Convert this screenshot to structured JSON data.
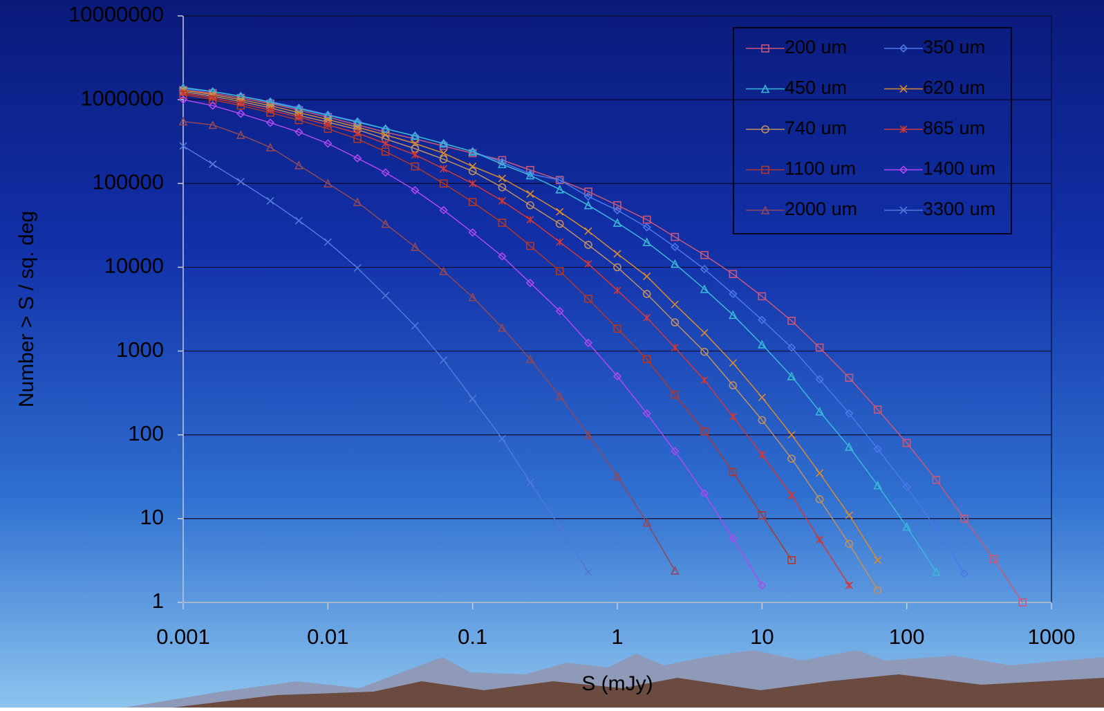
{
  "chart_data": {
    "type": "line",
    "x_label": "S (mJy)",
    "y_label": "Number > S / sq. deg",
    "x": [
      0.001,
      0.0016,
      0.0025,
      0.004,
      0.0063,
      0.01,
      0.016,
      0.025,
      0.04,
      0.063,
      0.1,
      0.16,
      0.25,
      0.4,
      0.63,
      1,
      1.6,
      2.5,
      4,
      6.3,
      10,
      16,
      25,
      40,
      63,
      100,
      160,
      250,
      400,
      630,
      1000
    ],
    "xscale": "log",
    "yscale": "log",
    "xlim": [
      0.001,
      1000
    ],
    "ylim": [
      1,
      10000000
    ],
    "xticks": [
      0.001,
      0.01,
      0.1,
      1,
      10,
      100,
      1000
    ],
    "yticks": [
      1,
      10,
      100,
      1000,
      10000,
      100000,
      1000000,
      10000000
    ],
    "grid": true,
    "legend": "top-right",
    "series": [
      {
        "name": "200 um",
        "color": "#c8587a",
        "marker": "square",
        "values": [
          1300000,
          1200000,
          1050000,
          900000,
          750000,
          620000,
          500000,
          410000,
          340000,
          280000,
          230000,
          190000,
          145000,
          110000,
          80000,
          55000,
          37000,
          23000,
          14000,
          8300,
          4500,
          2300,
          1100,
          480,
          200,
          80,
          29,
          10,
          3.3,
          1,
          null
        ]
      },
      {
        "name": "350 um",
        "color": "#4a78e8",
        "marker": "diamond",
        "values": [
          1350000,
          1250000,
          1100000,
          950000,
          800000,
          660000,
          550000,
          450000,
          370000,
          300000,
          240000,
          180000,
          130000,
          110000,
          70000,
          48000,
          30000,
          17500,
          9500,
          4800,
          2350,
          1100,
          460,
          180,
          68,
          24,
          7.5,
          2.2,
          null,
          null,
          null
        ]
      },
      {
        "name": "450 um",
        "color": "#38b8d8",
        "marker": "triangle",
        "values": [
          1400000,
          1250000,
          1100000,
          930000,
          780000,
          650000,
          540000,
          450000,
          370000,
          300000,
          240000,
          170000,
          125000,
          85000,
          55000,
          34000,
          20000,
          11000,
          5500,
          2700,
          1200,
          500,
          190,
          72,
          25,
          8,
          2.3,
          null,
          null,
          null,
          null
        ]
      },
      {
        "name": "620 um",
        "color": "#d88a30",
        "marker": "x",
        "values": [
          1300000,
          1150000,
          1000000,
          850000,
          700000,
          580000,
          470000,
          380000,
          300000,
          230000,
          160000,
          115000,
          75000,
          46000,
          27000,
          14500,
          7800,
          3600,
          1650,
          720,
          280,
          100,
          35,
          11,
          3.2,
          null,
          null,
          null,
          null,
          null,
          null
        ]
      },
      {
        "name": "740 um",
        "color": "#c09060",
        "marker": "circle",
        "values": [
          1250000,
          1100000,
          950000,
          800000,
          650000,
          540000,
          440000,
          340000,
          260000,
          195000,
          140000,
          90000,
          55000,
          33000,
          18500,
          10000,
          4800,
          2200,
          980,
          390,
          150,
          52,
          17,
          5,
          1.4,
          null,
          null,
          null,
          null,
          null,
          null
        ]
      },
      {
        "name": "865 um",
        "color": "#d03838",
        "marker": "star",
        "values": [
          1200000,
          1050000,
          900000,
          750000,
          620000,
          500000,
          400000,
          300000,
          220000,
          150000,
          100000,
          62000,
          37000,
          20000,
          11000,
          5300,
          2500,
          1100,
          450,
          165,
          58,
          19,
          5.6,
          1.6,
          null,
          null,
          null,
          null,
          null,
          null,
          null
        ]
      },
      {
        "name": "1100 um",
        "color": "#b03828",
        "marker": "square",
        "values": [
          1150000,
          1000000,
          850000,
          700000,
          570000,
          450000,
          340000,
          240000,
          160000,
          100000,
          60000,
          34000,
          18000,
          9000,
          4200,
          1850,
          800,
          300,
          110,
          36,
          11,
          3.2,
          null,
          null,
          null,
          null,
          null,
          null,
          null,
          null,
          null
        ]
      },
      {
        "name": "1400 um",
        "color": "#b048f0",
        "marker": "diamond",
        "values": [
          1000000,
          850000,
          680000,
          530000,
          410000,
          300000,
          200000,
          135000,
          83000,
          48000,
          26000,
          13500,
          6500,
          3000,
          1250,
          500,
          180,
          64,
          20,
          5.8,
          1.6,
          null,
          null,
          null,
          null,
          null,
          null,
          null,
          null,
          null,
          null
        ]
      },
      {
        "name": "2000 um",
        "color": "#904858",
        "marker": "triangle",
        "values": [
          550000,
          500000,
          380000,
          270000,
          165000,
          100000,
          60000,
          33000,
          17500,
          9000,
          4400,
          1900,
          800,
          290,
          100,
          32,
          9,
          2.4,
          null,
          null,
          null,
          null,
          null,
          null,
          null,
          null,
          null,
          null,
          null,
          null,
          null
        ]
      },
      {
        "name": "3300 um",
        "color": "#5078d8",
        "marker": "x",
        "values": [
          280000,
          170000,
          105000,
          62000,
          36000,
          20000,
          9800,
          4600,
          2000,
          780,
          270,
          90,
          27,
          8,
          2.3,
          null,
          null,
          null,
          null,
          null,
          null,
          null,
          null,
          null,
          null,
          null,
          null,
          null,
          null,
          null,
          null
        ]
      }
    ]
  }
}
